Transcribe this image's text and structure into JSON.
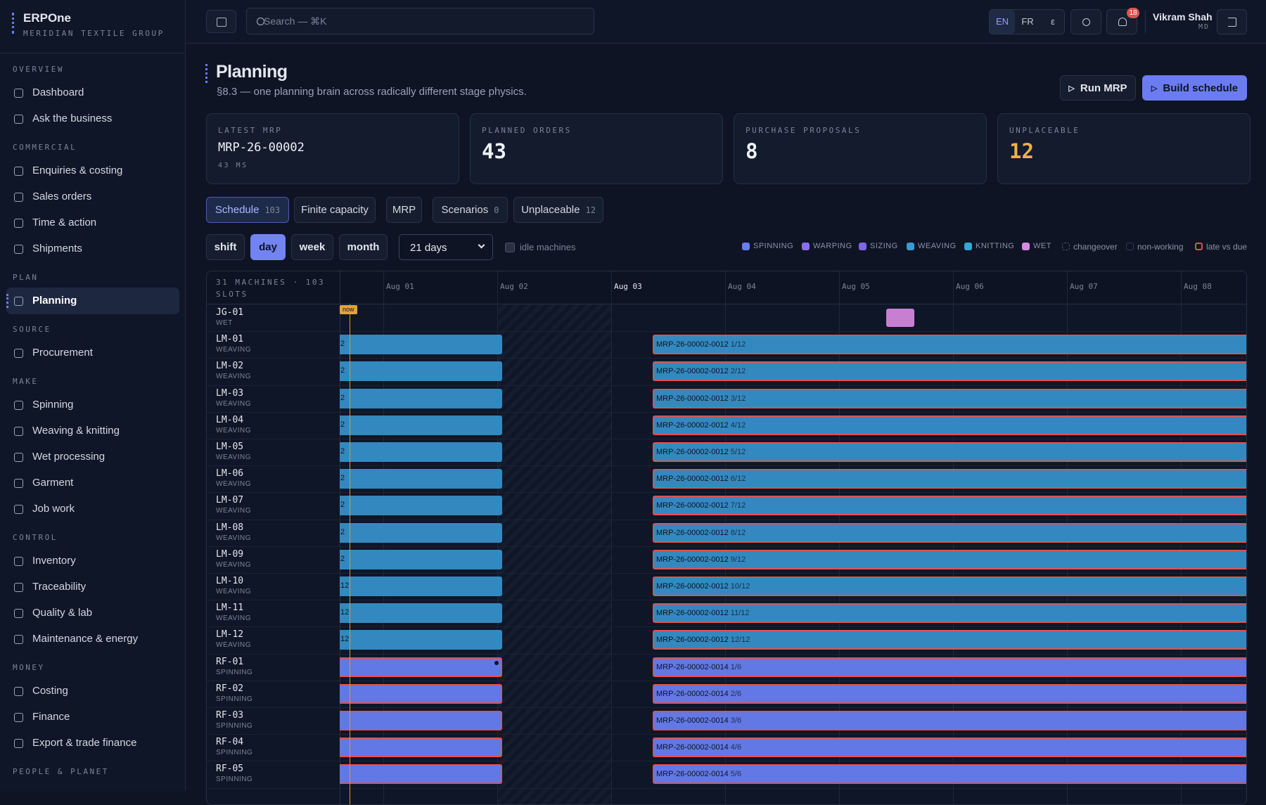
{
  "brand": {
    "name": "ERPOne",
    "org": "MERIDIAN TEXTILE GROUP"
  },
  "nav": [
    {
      "section": "OVERVIEW",
      "items": [
        "Dashboard",
        "Ask the business"
      ]
    },
    {
      "section": "COMMERCIAL",
      "items": [
        "Enquiries & costing",
        "Sales orders",
        "Time & action",
        "Shipments"
      ]
    },
    {
      "section": "PLAN",
      "items": [
        "Planning"
      ]
    },
    {
      "section": "SOURCE",
      "items": [
        "Procurement"
      ]
    },
    {
      "section": "MAKE",
      "items": [
        "Spinning",
        "Weaving & knitting",
        "Wet processing",
        "Garment",
        "Job work"
      ]
    },
    {
      "section": "CONTROL",
      "items": [
        "Inventory",
        "Traceability",
        "Quality & lab",
        "Maintenance & energy"
      ]
    },
    {
      "section": "MONEY",
      "items": [
        "Costing",
        "Finance",
        "Export & trade finance"
      ]
    },
    {
      "section": "PEOPLE & PLANET",
      "items": []
    }
  ],
  "topbar": {
    "search_placeholder": "Search — ⌘K",
    "languages": [
      "EN",
      "FR",
      "ε"
    ],
    "notifications": "18",
    "user": {
      "name": "Vikram Shah",
      "role": "MD"
    }
  },
  "header": {
    "title": "Planning",
    "subtitle": "§8.3 — one planning brain across radically different stage physics.",
    "actions": [
      "Run MRP",
      "Build schedule"
    ]
  },
  "kpis": [
    {
      "label": "LATEST MRP",
      "value": "MRP-26-00002",
      "sub": "43 MS"
    },
    {
      "label": "PLANNED ORDERS",
      "value": "43"
    },
    {
      "label": "PURCHASE PROPOSALS",
      "value": "8"
    },
    {
      "label": "UNPLACEABLE",
      "value": "12"
    }
  ],
  "tabs": [
    {
      "label": "Schedule",
      "count": "103"
    },
    {
      "label": "Finite capacity"
    },
    {
      "label": "MRP"
    },
    {
      "label": "Scenarios",
      "count": "0"
    },
    {
      "label": "Unplaceable",
      "count": "12"
    }
  ],
  "zoom": [
    "shift",
    "day",
    "week",
    "month"
  ],
  "horizon": "21 days",
  "idle_toggle": "idle machines",
  "legend": [
    {
      "name": "SPINNING",
      "color": "#6b7cf0"
    },
    {
      "name": "WARPING",
      "color": "#8b6ef0"
    },
    {
      "name": "SIZING",
      "color": "#7a68e6"
    },
    {
      "name": "WEAVING",
      "color": "#3a9ad2"
    },
    {
      "name": "KNITTING",
      "color": "#36a6d8"
    },
    {
      "name": "WET",
      "color": "#d58ae0"
    },
    {
      "name": "changeover"
    },
    {
      "name": "non-working"
    },
    {
      "name": "late vs due"
    }
  ],
  "gantt": {
    "summary": "31 MACHINES · 103 SLOTS",
    "days": [
      "Aug 01",
      "Aug 02",
      "Aug 03",
      "Aug 04",
      "Aug 05",
      "Aug 06",
      "Aug 07",
      "Aug 08"
    ],
    "now": "now",
    "rows": [
      {
        "machine": "JG-01",
        "stage": "WET"
      },
      {
        "machine": "LM-01",
        "stage": "WEAVING",
        "lead": "2",
        "order": "MRP-26-00002-0012",
        "seq": "1/12"
      },
      {
        "machine": "LM-02",
        "stage": "WEAVING",
        "lead": "2",
        "order": "MRP-26-00002-0012",
        "seq": "2/12"
      },
      {
        "machine": "LM-03",
        "stage": "WEAVING",
        "lead": "2",
        "order": "MRP-26-00002-0012",
        "seq": "3/12"
      },
      {
        "machine": "LM-04",
        "stage": "WEAVING",
        "lead": "2",
        "order": "MRP-26-00002-0012",
        "seq": "4/12"
      },
      {
        "machine": "LM-05",
        "stage": "WEAVING",
        "lead": "2",
        "order": "MRP-26-00002-0012",
        "seq": "5/12"
      },
      {
        "machine": "LM-06",
        "stage": "WEAVING",
        "lead": "2",
        "order": "MRP-26-00002-0012",
        "seq": "6/12"
      },
      {
        "machine": "LM-07",
        "stage": "WEAVING",
        "lead": "2",
        "order": "MRP-26-00002-0012",
        "seq": "7/12"
      },
      {
        "machine": "LM-08",
        "stage": "WEAVING",
        "lead": "2",
        "order": "MRP-26-00002-0012",
        "seq": "8/12"
      },
      {
        "machine": "LM-09",
        "stage": "WEAVING",
        "lead": "2",
        "order": "MRP-26-00002-0012",
        "seq": "9/12"
      },
      {
        "machine": "LM-10",
        "stage": "WEAVING",
        "lead": "12",
        "order": "MRP-26-00002-0012",
        "seq": "10/12"
      },
      {
        "machine": "LM-11",
        "stage": "WEAVING",
        "lead": "12",
        "order": "MRP-26-00002-0012",
        "seq": "11/12"
      },
      {
        "machine": "LM-12",
        "stage": "WEAVING",
        "lead": "12",
        "order": "MRP-26-00002-0012",
        "seq": "12/12"
      },
      {
        "machine": "RF-01",
        "stage": "SPINNING",
        "order": "MRP-26-00002-0014",
        "seq": "1/6"
      },
      {
        "machine": "RF-02",
        "stage": "SPINNING",
        "order": "MRP-26-00002-0014",
        "seq": "2/6"
      },
      {
        "machine": "RF-03",
        "stage": "SPINNING",
        "order": "MRP-26-00002-0014",
        "seq": "3/6"
      },
      {
        "machine": "RF-04",
        "stage": "SPINNING",
        "order": "MRP-26-00002-0014",
        "seq": "4/6"
      },
      {
        "machine": "RF-05",
        "stage": "SPINNING",
        "order": "MRP-26-00002-0014",
        "seq": "5/6"
      }
    ]
  }
}
